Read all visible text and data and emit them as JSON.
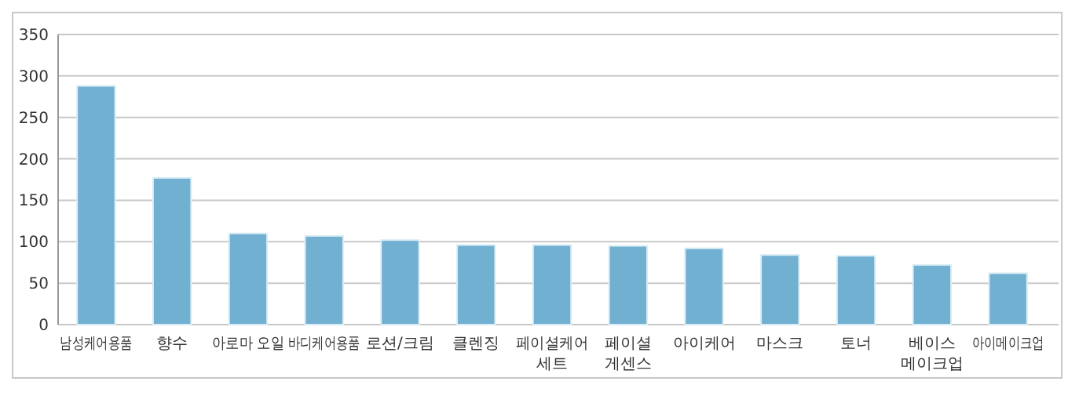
{
  "chart_data": {
    "type": "bar",
    "categories": [
      "남성케어용품",
      "향수",
      "아로마 오일",
      "바디케어용품",
      "로션/크림",
      "클렌징",
      "페이셜케어\n세트",
      "페이셜\n게센스",
      "아이케어",
      "마스크",
      "토너",
      "베이스\n메이크업",
      "아이메이크업"
    ],
    "values": [
      288,
      177,
      110,
      107,
      102,
      96,
      96,
      95,
      92,
      84,
      83,
      72,
      62
    ],
    "color": "#71b0d1",
    "ylim": [
      0,
      350
    ],
    "yticks": [
      0,
      50,
      100,
      150,
      200,
      250,
      300,
      350
    ],
    "grid": "y"
  }
}
